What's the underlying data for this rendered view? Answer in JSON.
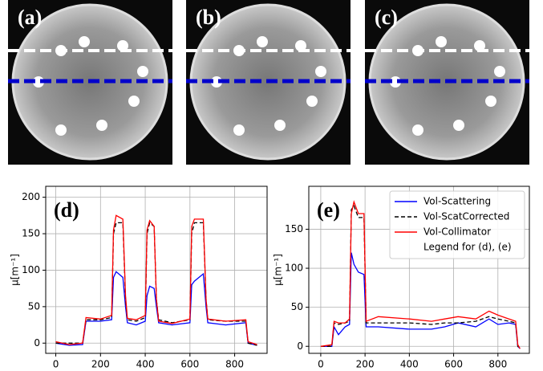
{
  "images": [
    {
      "label": "(a)"
    },
    {
      "label": "(b)"
    },
    {
      "label": "(c)"
    }
  ],
  "chart_data": [
    {
      "type": "line",
      "label": "(d)",
      "y_label": "μ[m⁻¹]",
      "xlim": [
        -45,
        945
      ],
      "ylim": [
        -14,
        215
      ],
      "xticks": [
        0,
        200,
        400,
        600,
        800
      ],
      "yticks": [
        0,
        50,
        100,
        150,
        200
      ],
      "grid": true,
      "x": [
        0,
        60,
        120,
        135,
        200,
        250,
        258,
        270,
        300,
        312,
        320,
        360,
        400,
        408,
        420,
        440,
        450,
        460,
        520,
        600,
        608,
        620,
        660,
        672,
        680,
        760,
        850,
        860,
        900
      ],
      "series": [
        {
          "name": "Vol-Scattering",
          "color": "#0000ff",
          "linestyle": "solid",
          "values": [
            0,
            -3,
            -2,
            30,
            30,
            32,
            90,
            98,
            90,
            50,
            28,
            25,
            30,
            65,
            78,
            75,
            50,
            28,
            25,
            28,
            80,
            85,
            95,
            50,
            28,
            25,
            28,
            0,
            -3
          ]
        },
        {
          "name": "Vol-ScatCorrected",
          "color": "#000000",
          "linestyle": "dashed",
          "values": [
            0,
            0,
            0,
            32,
            32,
            35,
            150,
            165,
            165,
            60,
            32,
            30,
            35,
            150,
            165,
            160,
            60,
            32,
            28,
            32,
            150,
            165,
            165,
            60,
            32,
            30,
            30,
            0,
            -3
          ]
        },
        {
          "name": "Vol-Collimator",
          "color": "#ff0000",
          "linestyle": "solid",
          "values": [
            2,
            -2,
            0,
            35,
            33,
            38,
            155,
            175,
            170,
            65,
            34,
            32,
            38,
            155,
            168,
            160,
            60,
            30,
            27,
            33,
            160,
            170,
            170,
            60,
            33,
            30,
            32,
            2,
            -2
          ]
        }
      ]
    },
    {
      "type": "line",
      "label": "(e)",
      "y_label": "μ[m⁻¹]",
      "legend": "upper right",
      "legend_note": "Legend for (d), (e)",
      "xlim": [
        -54,
        942
      ],
      "ylim": [
        -9,
        205
      ],
      "xticks": [
        0,
        200,
        400,
        600,
        800
      ],
      "yticks": [
        0,
        50,
        100,
        150
      ],
      "grid": true,
      "x": [
        0,
        50,
        60,
        80,
        110,
        130,
        138,
        150,
        170,
        195,
        205,
        260,
        400,
        500,
        560,
        620,
        700,
        760,
        800,
        850,
        880,
        890,
        900
      ],
      "series": [
        {
          "name": "Vol-Scattering",
          "color": "#0000ff",
          "linestyle": "solid",
          "values": [
            0,
            0,
            25,
            15,
            25,
            28,
            120,
            105,
            95,
            92,
            25,
            25,
            22,
            22,
            25,
            30,
            25,
            35,
            28,
            30,
            28,
            0,
            -3
          ]
        },
        {
          "name": "Vol-ScatCorrected",
          "color": "#000000",
          "linestyle": "dashed",
          "values": [
            0,
            0,
            30,
            28,
            30,
            32,
            175,
            180,
            165,
            165,
            30,
            30,
            30,
            28,
            30,
            30,
            32,
            38,
            35,
            32,
            30,
            0,
            -3
          ]
        },
        {
          "name": "Vol-Collimator",
          "color": "#ff0000",
          "linestyle": "solid",
          "values": [
            0,
            2,
            32,
            30,
            30,
            35,
            170,
            185,
            170,
            170,
            32,
            38,
            35,
            32,
            35,
            38,
            35,
            45,
            40,
            35,
            32,
            2,
            -3
          ]
        }
      ]
    }
  ]
}
